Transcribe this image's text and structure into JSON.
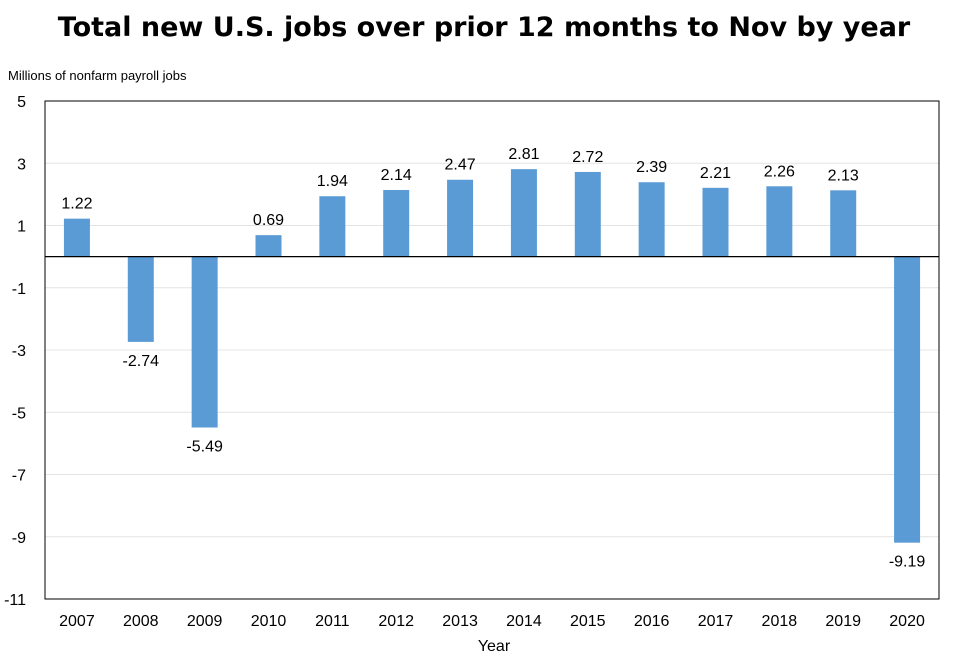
{
  "chart_data": {
    "type": "bar",
    "title": "Total new U.S. jobs over prior 12 months to Nov by year",
    "unit_label": "Millions of nonfarm payroll jobs",
    "xlabel": "Year",
    "ylabel": "",
    "categories": [
      "2007",
      "2008",
      "2009",
      "2010",
      "2011",
      "2012",
      "2013",
      "2014",
      "2015",
      "2016",
      "2017",
      "2018",
      "2019",
      "2020"
    ],
    "values": [
      1.22,
      -2.74,
      -5.49,
      0.69,
      1.94,
      2.14,
      2.47,
      2.81,
      2.72,
      2.39,
      2.21,
      2.26,
      2.13,
      -9.19
    ],
    "data_labels": [
      "1.22",
      "-2.74",
      "-5.49",
      "0.69",
      "1.94",
      "2.14",
      "2.47",
      "2.81",
      "2.72",
      "2.39",
      "2.21",
      "2.26",
      "2.13",
      "-9.19"
    ],
    "ylim": [
      -11,
      5
    ],
    "yticks": [
      "5",
      "3",
      "1",
      "-1",
      "-3",
      "-5",
      "-7",
      "-9",
      "-11"
    ],
    "ytick_values": [
      5,
      3,
      1,
      -1,
      -3,
      -5,
      -7,
      -9,
      -11
    ],
    "grid": true,
    "legend": "none",
    "bar_color": "#5b9bd5"
  }
}
